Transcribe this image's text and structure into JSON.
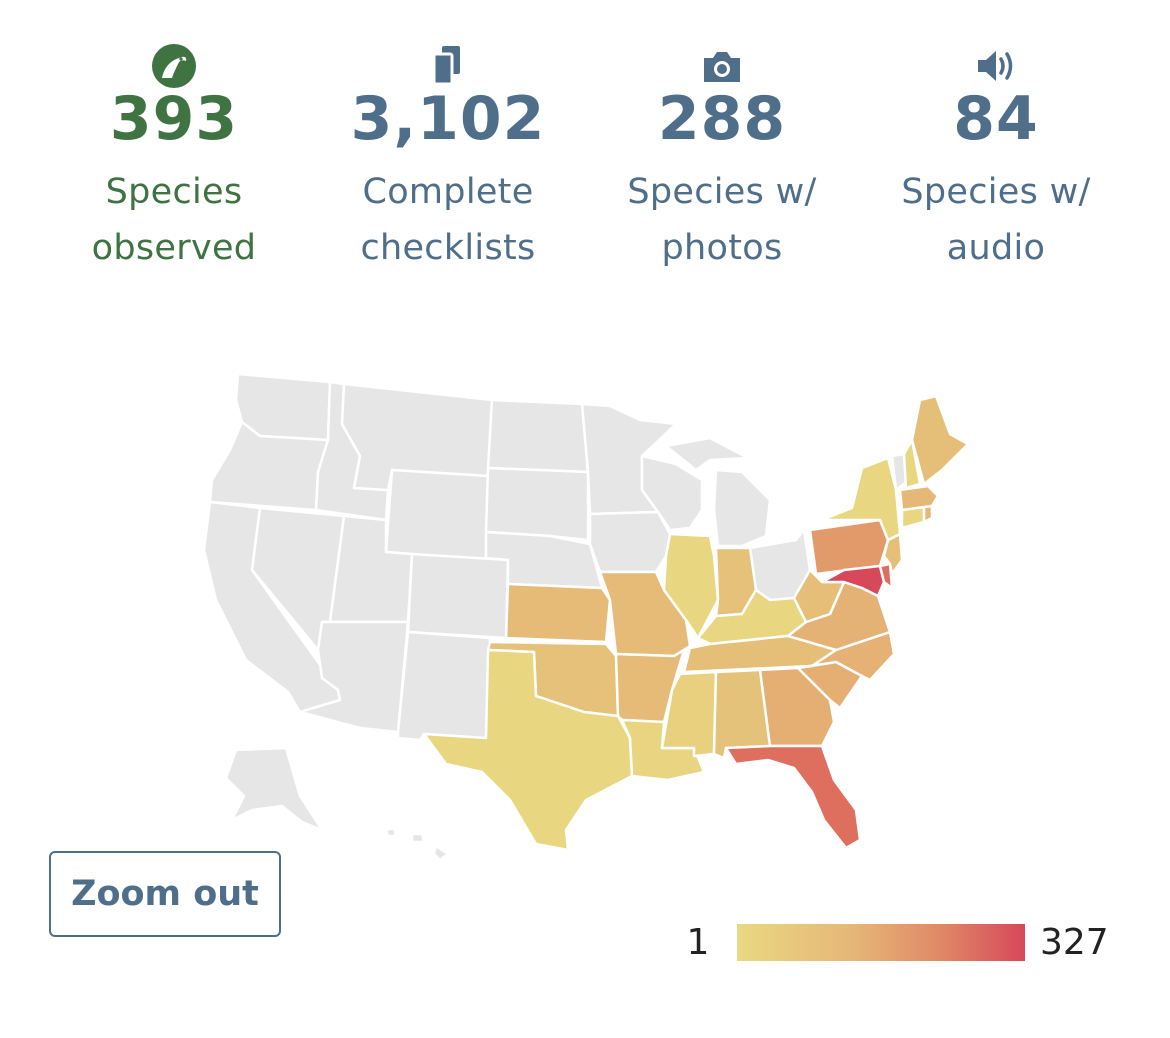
{
  "stats": [
    {
      "value": "393",
      "label_line1": "Species",
      "label_line2": "observed",
      "icon": "bird-species-icon",
      "color": "#3f7342"
    },
    {
      "value": "3,102",
      "label_line1": "Complete",
      "label_line2": "checklists",
      "icon": "checklists-icon",
      "color": "#4f6e89"
    },
    {
      "value": "288",
      "label_line1": "Species w/",
      "label_line2": "photos",
      "icon": "camera-icon",
      "color": "#4f6e89"
    },
    {
      "value": "84",
      "label_line1": "Species w/",
      "label_line2": "audio",
      "icon": "speaker-icon",
      "color": "#4f6e89"
    }
  ],
  "map": {
    "region": "United States",
    "no_data_color": "#e6e6e6",
    "state_colors": {
      "Maine": "#e5bf78",
      "Vermont": "#e6e6e6",
      "New Hampshire": "#e9d681",
      "Massachusetts": "#e6b877",
      "Rhode Island": "#e6b877",
      "Connecticut": "#e9d681",
      "New York": "#e9d681",
      "New Jersey": "#e5bf78",
      "Pennsylvania": "#e39a6a",
      "Delaware": "#dd6e5d",
      "Maryland": "#d6485a",
      "Virginia": "#e5b275",
      "West Virginia": "#e6be78",
      "Ohio": "#e6e6e6",
      "Michigan": "#e6e6e6",
      "Indiana": "#e5c179",
      "Illinois": "#e9d681",
      "Wisconsin": "#e6e6e6",
      "Minnesota": "#e6e6e6",
      "Iowa": "#e6e6e6",
      "Missouri": "#e5bb77",
      "Kentucky": "#e9d681",
      "Tennessee": "#e5be78",
      "North Carolina": "#e5b174",
      "South Carolina": "#e5ae72",
      "Georgia": "#e5ae72",
      "Florida": "#de6e5d",
      "Alabama": "#e5c279",
      "Mississippi": "#e9d07e",
      "Arkansas": "#e5bb77",
      "Louisiana": "#e9d581",
      "Texas": "#e9d681",
      "Oklahoma": "#e5c179",
      "Kansas": "#e5bb77",
      "Nebraska": "#e6e6e6",
      "South Dakota": "#e6e6e6",
      "North Dakota": "#e6e6e6",
      "Montana": "#e6e6e6",
      "Wyoming": "#e6e6e6",
      "Colorado": "#e6e6e6",
      "New Mexico": "#e6e6e6",
      "Arizona": "#e6e6e6",
      "Utah": "#e6e6e6",
      "Nevada": "#e6e6e6",
      "Idaho": "#e6e6e6",
      "Washington": "#e6e6e6",
      "Oregon": "#e6e6e6",
      "California": "#e6e6e6",
      "Alaska": "#e6e6e6",
      "Hawaii": "#e6e6e6"
    }
  },
  "zoom_out_label": "Zoom out",
  "legend": {
    "min_label": "1",
    "max_label": "327",
    "color_low": "#e9d882",
    "color_high": "#d6485a"
  }
}
